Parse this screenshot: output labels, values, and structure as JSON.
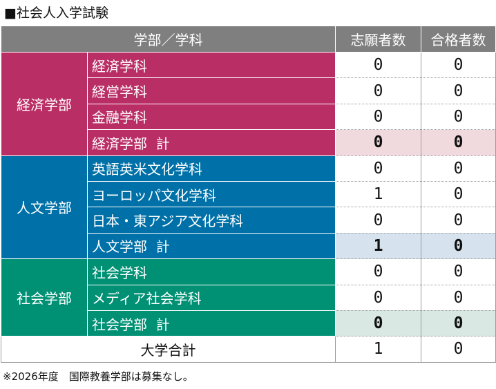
{
  "title": "■社会人入学試験",
  "header": {
    "dept": "学部／学科",
    "applicants": "志願者数",
    "admitted": "合格者数"
  },
  "faculties": [
    {
      "name": "経済学部",
      "rows": [
        {
          "dept": "経済学科",
          "applicants": "0",
          "admitted": "0"
        },
        {
          "dept": "経営学科",
          "applicants": "0",
          "admitted": "0"
        },
        {
          "dept": "金融学科",
          "applicants": "0",
          "admitted": "0"
        },
        {
          "dept": "経済学部  計",
          "applicants": "0",
          "admitted": "0"
        }
      ]
    },
    {
      "name": "人文学部",
      "rows": [
        {
          "dept": "英語英米文化学科",
          "applicants": "0",
          "admitted": "0"
        },
        {
          "dept": "ヨーロッパ文化学科",
          "applicants": "1",
          "admitted": "0"
        },
        {
          "dept": "日本・東アジア文化学科",
          "applicants": "0",
          "admitted": "0"
        },
        {
          "dept": "人文学部  計",
          "applicants": "1",
          "admitted": "0"
        }
      ]
    },
    {
      "name": "社会学部",
      "rows": [
        {
          "dept": "社会学科",
          "applicants": "0",
          "admitted": "0"
        },
        {
          "dept": "メディア社会学科",
          "applicants": "0",
          "admitted": "0"
        },
        {
          "dept": "社会学部  計",
          "applicants": "0",
          "admitted": "0"
        }
      ]
    }
  ],
  "total": {
    "label": "大学合計",
    "applicants": "1",
    "admitted": "0"
  },
  "note": "※2026年度　国際教養学部は募集なし。",
  "colors": {
    "economics": "#ba2e66",
    "humanities": "#0071a8",
    "sociology": "#009175",
    "header": "#7f7f7f"
  }
}
